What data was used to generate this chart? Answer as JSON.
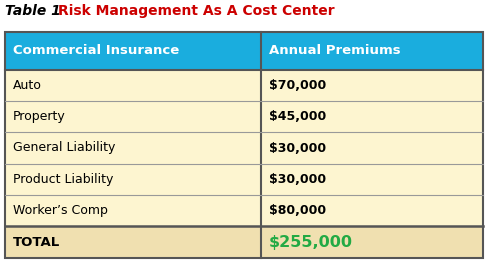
{
  "title_prefix": "Table 1",
  "title_main": "Risk Management As A Cost Center",
  "title_prefix_color": "#000000",
  "title_main_color": "#cc0000",
  "col_headers": [
    "Commercial Insurance",
    "Annual Premiums"
  ],
  "rows": [
    [
      "Auto",
      "$70,000"
    ],
    [
      "Property",
      "$45,000"
    ],
    [
      "General Liability",
      "$30,000"
    ],
    [
      "Product Liability",
      "$30,000"
    ],
    [
      "Worker’s Comp",
      "$80,000"
    ]
  ],
  "total_row": [
    "TOTAL",
    "$255,000"
  ],
  "header_bg": "#1aadde",
  "header_text_color": "#ffffff",
  "body_bg": "#fdf5d0",
  "total_bg": "#f0e0b0",
  "total_left_text_color": "#000000",
  "total_right_text_color": "#22aa44",
  "row_line_color": "#999999",
  "border_color": "#555555",
  "col_split": 0.535,
  "fig_bg": "#ffffff"
}
